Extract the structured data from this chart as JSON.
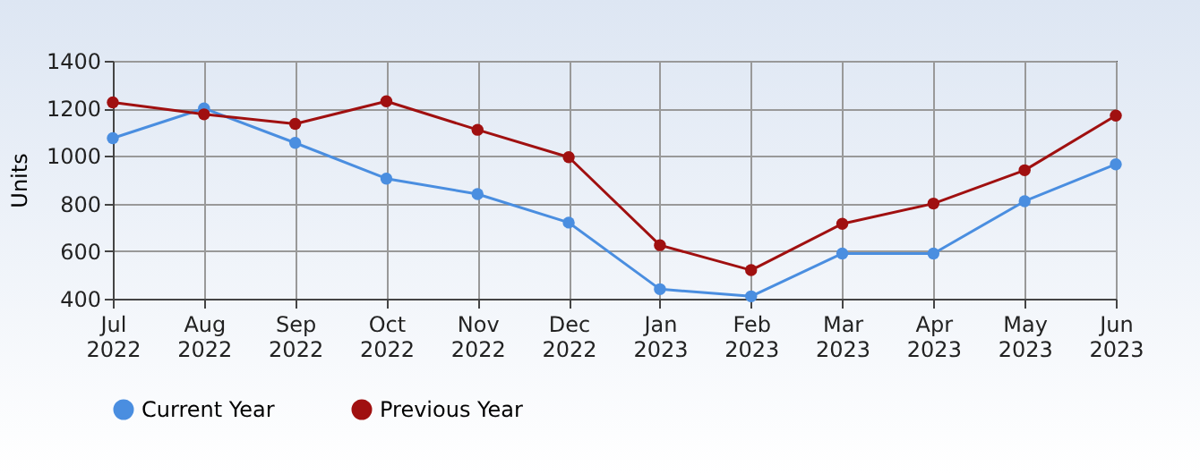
{
  "chart_data": {
    "type": "line",
    "ylabel": "Units",
    "categories": [
      "Jul 2022",
      "Aug 2022",
      "Sep 2022",
      "Oct 2022",
      "Nov 2022",
      "Dec 2022",
      "Jan 2023",
      "Feb 2023",
      "Mar 2023",
      "Apr 2023",
      "May 2023",
      "Jun 2023"
    ],
    "series": [
      {
        "name": "Current Year",
        "color": "#4a8ee0",
        "values": [
          1075,
          1200,
          1055,
          905,
          840,
          720,
          440,
          410,
          590,
          590,
          810,
          965
        ]
      },
      {
        "name": "Previous Year",
        "color": "#a01010",
        "values": [
          1225,
          1175,
          1135,
          1230,
          1110,
          995,
          625,
          520,
          715,
          800,
          940,
          1170
        ]
      }
    ],
    "ylim": [
      400,
      1400
    ],
    "yticks": [
      400,
      600,
      800,
      1000,
      1200,
      1400
    ],
    "grid": true,
    "legend": "bottom",
    "marker": "circle",
    "line_style": "solid"
  }
}
